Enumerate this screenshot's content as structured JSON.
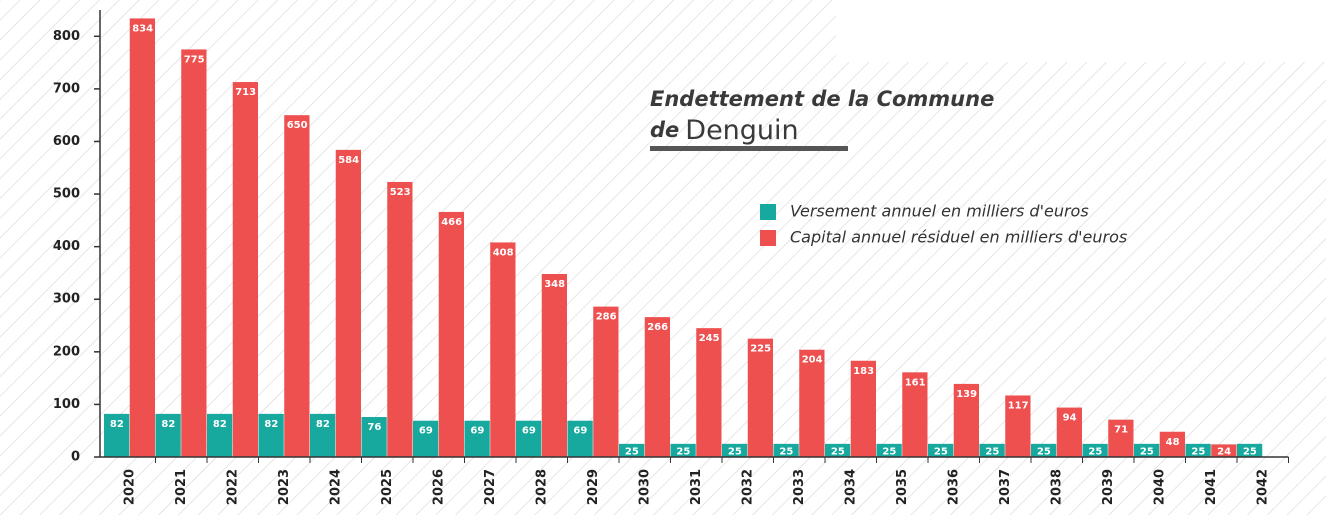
{
  "chart_data": {
    "type": "bar",
    "title": "Endettement de la Commune",
    "title_line2": {
      "prefix": "de",
      "name": "Denguin"
    },
    "categories": [
      "2020",
      "2021",
      "2022",
      "2023",
      "2024",
      "2025",
      "2026",
      "2027",
      "2028",
      "2029",
      "2030",
      "2031",
      "2032",
      "2033",
      "2034",
      "2035",
      "2036",
      "2037",
      "2038",
      "2039",
      "2040",
      "2041",
      "2042"
    ],
    "series": [
      {
        "name": "Versement annuel en milliers d'euros",
        "color": "#17a89e",
        "values": [
          82,
          82,
          82,
          82,
          82,
          76,
          69,
          69,
          69,
          69,
          25,
          25,
          25,
          25,
          25,
          25,
          25,
          25,
          25,
          25,
          25,
          25,
          25
        ]
      },
      {
        "name": "Capital annuel résiduel en milliers d'euros",
        "color": "#ee4f4f",
        "values": [
          834,
          775,
          713,
          650,
          584,
          523,
          466,
          408,
          348,
          286,
          266,
          245,
          225,
          204,
          183,
          161,
          139,
          117,
          94,
          71,
          48,
          24,
          null
        ]
      }
    ],
    "ylim": [
      0,
      850
    ],
    "yticks": [
      0,
      100,
      200,
      300,
      400,
      500,
      600,
      700,
      800
    ]
  }
}
